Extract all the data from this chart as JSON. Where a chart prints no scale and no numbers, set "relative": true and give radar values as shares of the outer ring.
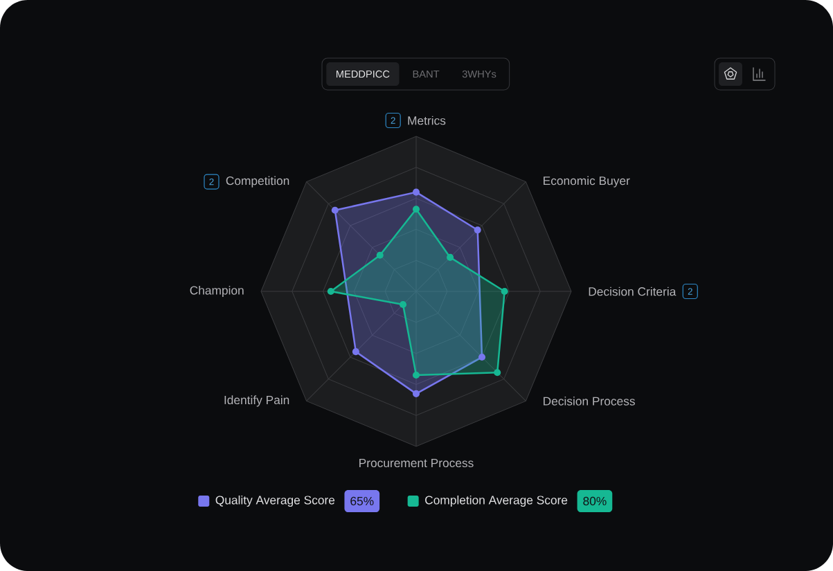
{
  "chart_data": {
    "type": "radar",
    "categories": [
      "Metrics",
      "Economic Buyer",
      "Decision Criteria",
      "Decision Process",
      "Procurement Process",
      "Identify Pain",
      "Champion",
      "Competition"
    ],
    "series": [
      {
        "name": "Quality Average Score",
        "color": "#7877ee",
        "values": [
          0.64,
          0.56,
          null,
          0.6,
          0.66,
          0.55,
          null,
          0.74
        ]
      },
      {
        "name": "Completion Average Score",
        "color": "#16b893",
        "values": [
          0.53,
          0.31,
          0.57,
          0.74,
          0.54,
          0.12,
          0.55,
          0.33
        ]
      }
    ],
    "relative": true,
    "grid": true,
    "marker": "circle",
    "legend": "bottom",
    "annotations": [
      "MEDDPICC",
      "BANT",
      "3WHYs",
      {
        "text": "2",
        "x": "Metrics"
      },
      {
        "text": "2",
        "x": "Competition"
      },
      {
        "text": "2",
        "x": "Decision Criteria"
      },
      "65%",
      "80%"
    ]
  }
}
